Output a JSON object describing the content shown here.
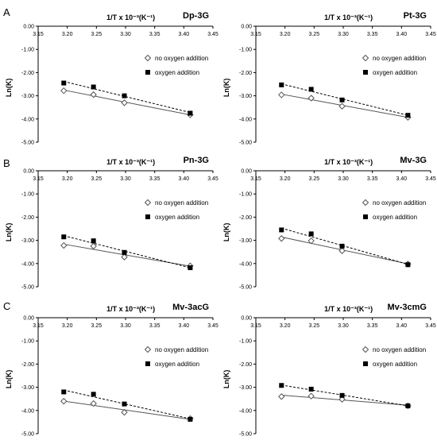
{
  "panel_labels": [
    "A",
    "B",
    "C"
  ],
  "chart_data": [
    {
      "type": "scatter",
      "title": "Dp-3G",
      "xlabel": "1/T x 10⁻³(K⁻¹)",
      "ylabel": "Ln(K)",
      "xlim": [
        3.15,
        3.45
      ],
      "ylim": [
        -5.0,
        0.0
      ],
      "x_ticks": [
        "3.15",
        "3.20",
        "3.25",
        "3.30",
        "3.35",
        "3.40",
        "3.45"
      ],
      "y_ticks": [
        "0.00",
        "-1.00",
        "-2.00",
        "-3.00",
        "-4.00",
        "-5.00"
      ],
      "legend_position": "right",
      "series": [
        {
          "name": "no oxygen addition",
          "marker": "open-diamond",
          "line": "solid",
          "x": [
            3.194,
            3.245,
            3.298,
            3.411
          ],
          "y": [
            -2.78,
            -2.95,
            -3.3,
            -3.82
          ]
        },
        {
          "name": "oxygen addition",
          "marker": "filled-square",
          "line": "dashed",
          "x": [
            3.194,
            3.245,
            3.298,
            3.411
          ],
          "y": [
            -2.45,
            -2.62,
            -3.0,
            -3.75
          ]
        }
      ]
    },
    {
      "type": "scatter",
      "title": "Pt-3G",
      "xlabel": "1/T x 10⁻³(K⁻¹)",
      "ylabel": "Ln(K)",
      "xlim": [
        3.15,
        3.45
      ],
      "ylim": [
        -5.0,
        0.0
      ],
      "x_ticks": [
        "3.15",
        "3.20",
        "3.25",
        "3.30",
        "3.35",
        "3.40",
        "3.45"
      ],
      "y_ticks": [
        "0.00",
        "-1.00",
        "-2.00",
        "-3.00",
        "-4.00",
        "-5.00"
      ],
      "legend_position": "right",
      "series": [
        {
          "name": "no oxygen addition",
          "marker": "open-diamond",
          "line": "solid",
          "x": [
            3.194,
            3.245,
            3.298,
            3.411
          ],
          "y": [
            -2.96,
            -3.1,
            -3.45,
            -3.93
          ]
        },
        {
          "name": "oxygen addition",
          "marker": "filled-square",
          "line": "dashed",
          "x": [
            3.194,
            3.245,
            3.298,
            3.411
          ],
          "y": [
            -2.53,
            -2.72,
            -3.18,
            -3.84
          ]
        }
      ]
    },
    {
      "type": "scatter",
      "title": "Pn-3G",
      "xlabel": "1/T x 10⁻³(K⁻¹)",
      "ylabel": "Ln(K)",
      "xlim": [
        3.15,
        3.45
      ],
      "ylim": [
        -5.0,
        0.0
      ],
      "x_ticks": [
        "3.15",
        "3.20",
        "3.25",
        "3.30",
        "3.35",
        "3.40",
        "3.45"
      ],
      "y_ticks": [
        "0.00",
        "-1.00",
        "-2.00",
        "-3.00",
        "-4.00",
        "-5.00"
      ],
      "legend_position": "right",
      "series": [
        {
          "name": "no oxygen addition",
          "marker": "open-diamond",
          "line": "solid",
          "x": [
            3.194,
            3.245,
            3.298,
            3.411
          ],
          "y": [
            -3.22,
            -3.25,
            -3.72,
            -4.1
          ]
        },
        {
          "name": "oxygen addition",
          "marker": "filled-square",
          "line": "dashed",
          "x": [
            3.194,
            3.245,
            3.298,
            3.411
          ],
          "y": [
            -2.85,
            -3.02,
            -3.52,
            -4.18
          ]
        }
      ]
    },
    {
      "type": "scatter",
      "title": "Mv-3G",
      "xlabel": "1/T x 10⁻³(K⁻¹)",
      "ylabel": "Ln(K)",
      "xlim": [
        3.15,
        3.45
      ],
      "ylim": [
        -5.0,
        0.0
      ],
      "x_ticks": [
        "3.15",
        "3.20",
        "3.25",
        "3.30",
        "3.35",
        "3.40",
        "3.45"
      ],
      "y_ticks": [
        "0.00",
        "-1.00",
        "-2.00",
        "-3.00",
        "-4.00",
        "-5.00"
      ],
      "legend_position": "right",
      "series": [
        {
          "name": "no oxygen addition",
          "marker": "open-diamond",
          "line": "solid",
          "x": [
            3.194,
            3.245,
            3.298,
            3.411
          ],
          "y": [
            -2.92,
            -3.02,
            -3.45,
            -4.02
          ]
        },
        {
          "name": "oxygen addition",
          "marker": "filled-square",
          "line": "dashed",
          "x": [
            3.194,
            3.245,
            3.298,
            3.411
          ],
          "y": [
            -2.55,
            -2.72,
            -3.25,
            -4.05
          ]
        }
      ]
    },
    {
      "type": "scatter",
      "title": "Mv-3acG",
      "xlabel": "1/T x 10⁻³(K⁻¹)",
      "ylabel": "Ln(K)",
      "xlim": [
        3.15,
        3.45
      ],
      "ylim": [
        -5.0,
        0.0
      ],
      "x_ticks": [
        "3.15",
        "3.20",
        "3.25",
        "3.30",
        "3.35",
        "3.40",
        "3.45"
      ],
      "y_ticks": [
        "0.00",
        "-1.00",
        "-2.00",
        "-3.00",
        "-4.00",
        "-5.00"
      ],
      "legend_position": "right",
      "series": [
        {
          "name": "no oxygen addition",
          "marker": "open-diamond",
          "line": "solid",
          "x": [
            3.194,
            3.245,
            3.298,
            3.411
          ],
          "y": [
            -3.6,
            -3.7,
            -4.08,
            -4.35
          ]
        },
        {
          "name": "oxygen addition",
          "marker": "filled-square",
          "line": "dashed",
          "x": [
            3.194,
            3.245,
            3.298,
            3.411
          ],
          "y": [
            -3.2,
            -3.3,
            -3.72,
            -4.38
          ]
        }
      ]
    },
    {
      "type": "scatter",
      "title": "Mv-3cmG",
      "xlabel": "1/T x 10⁻³(K⁻¹)",
      "ylabel": "Ln(K)",
      "xlim": [
        3.15,
        3.45
      ],
      "ylim": [
        -5.0,
        0.0
      ],
      "x_ticks": [
        "3.15",
        "3.20",
        "3.25",
        "3.30",
        "3.35",
        "3.40",
        "3.45"
      ],
      "y_ticks": [
        "0.00",
        "-1.00",
        "-2.00",
        "-3.00",
        "-4.00",
        "-5.00"
      ],
      "legend_position": "right",
      "series": [
        {
          "name": "no oxygen addition",
          "marker": "open-diamond",
          "line": "solid",
          "x": [
            3.194,
            3.245,
            3.298,
            3.411
          ],
          "y": [
            -3.4,
            -3.38,
            -3.52,
            -3.8
          ]
        },
        {
          "name": "oxygen addition",
          "marker": "filled-square",
          "line": "dashed",
          "x": [
            3.194,
            3.245,
            3.298,
            3.411
          ],
          "y": [
            -2.92,
            -3.08,
            -3.35,
            -3.8
          ]
        }
      ]
    }
  ]
}
